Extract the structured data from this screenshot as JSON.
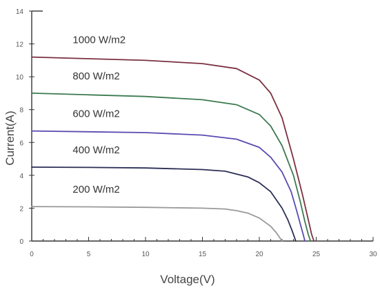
{
  "chart_data": {
    "type": "line",
    "title": "",
    "xlabel": "Voltage(V)",
    "ylabel": "Current(A)",
    "xlim": [
      0,
      30
    ],
    "ylim": [
      0,
      14
    ],
    "x_ticks": [
      0,
      5,
      10,
      15,
      20,
      25,
      30
    ],
    "y_ticks": [
      0,
      2,
      4,
      6,
      8,
      10,
      12,
      14
    ],
    "grid": false,
    "legend": "none",
    "series": [
      {
        "name": "1000 W/m2",
        "color": "#7a3040",
        "x": [
          0,
          5,
          10,
          15,
          18,
          20,
          21,
          22,
          23,
          23.8,
          24.3,
          24.6,
          24.8
        ],
        "y": [
          11.2,
          11.1,
          11.0,
          10.8,
          10.5,
          9.8,
          9.0,
          7.5,
          5.0,
          2.8,
          1.3,
          0.4,
          0
        ]
      },
      {
        "name": "800 W/m2",
        "color": "#3c7a50",
        "x": [
          0,
          5,
          10,
          15,
          18,
          20,
          21,
          22,
          23,
          23.6,
          24.0,
          24.3,
          24.5
        ],
        "y": [
          9.0,
          8.9,
          8.8,
          8.6,
          8.3,
          7.7,
          7.0,
          5.8,
          4.0,
          2.4,
          1.2,
          0.4,
          0
        ]
      },
      {
        "name": "600 W/m2",
        "color": "#5a4ab0",
        "x": [
          0,
          5,
          10,
          15,
          18,
          20,
          21,
          22,
          22.8,
          23.3,
          23.7,
          23.9,
          24.0
        ],
        "y": [
          6.7,
          6.65,
          6.6,
          6.45,
          6.2,
          5.7,
          5.1,
          4.2,
          3.0,
          1.8,
          0.8,
          0.3,
          0
        ]
      },
      {
        "name": "400 W/m2",
        "color": "#2a2e55",
        "x": [
          0,
          5,
          10,
          15,
          17,
          19,
          20,
          21,
          22,
          22.5,
          22.9,
          23.1,
          23.2
        ],
        "y": [
          4.5,
          4.48,
          4.45,
          4.35,
          4.25,
          3.9,
          3.55,
          3.0,
          2.0,
          1.3,
          0.6,
          0.2,
          0
        ]
      },
      {
        "name": "200 W/m2",
        "color": "#999999",
        "x": [
          0,
          5,
          10,
          15,
          17,
          18,
          19,
          20,
          21,
          21.5,
          21.8,
          22.0
        ],
        "y": [
          2.1,
          2.08,
          2.05,
          2.0,
          1.95,
          1.85,
          1.7,
          1.4,
          0.9,
          0.5,
          0.2,
          0
        ]
      }
    ]
  }
}
